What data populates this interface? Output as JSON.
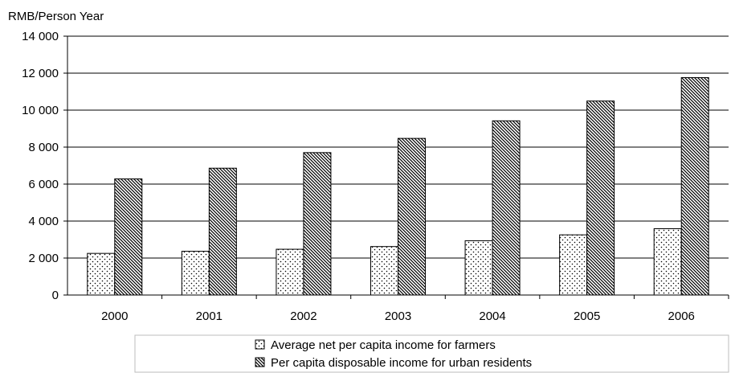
{
  "chart_data": {
    "type": "bar",
    "title": "",
    "ylabel": "RMB/Person Year",
    "xlabel": "",
    "categories": [
      "2000",
      "2001",
      "2002",
      "2003",
      "2004",
      "2005",
      "2006"
    ],
    "ylim": [
      0,
      14000
    ],
    "yticks": [
      0,
      2000,
      4000,
      6000,
      8000,
      10000,
      12000,
      14000
    ],
    "ytick_labels": [
      "0",
      "2 000",
      "4 000",
      "6 000",
      "8 000",
      "10 000",
      "12 000",
      "14 000"
    ],
    "grid": true,
    "legend_position": "bottom",
    "series": [
      {
        "name": "Average net per capita income for farmers",
        "pattern": "dots",
        "values": [
          2253,
          2366,
          2476,
          2622,
          2936,
          3255,
          3587
        ]
      },
      {
        "name": "Per capita disposable income for urban residents",
        "pattern": "diagonal-hatch",
        "values": [
          6280,
          6860,
          7703,
          8472,
          9422,
          10493,
          11759
        ]
      }
    ]
  }
}
